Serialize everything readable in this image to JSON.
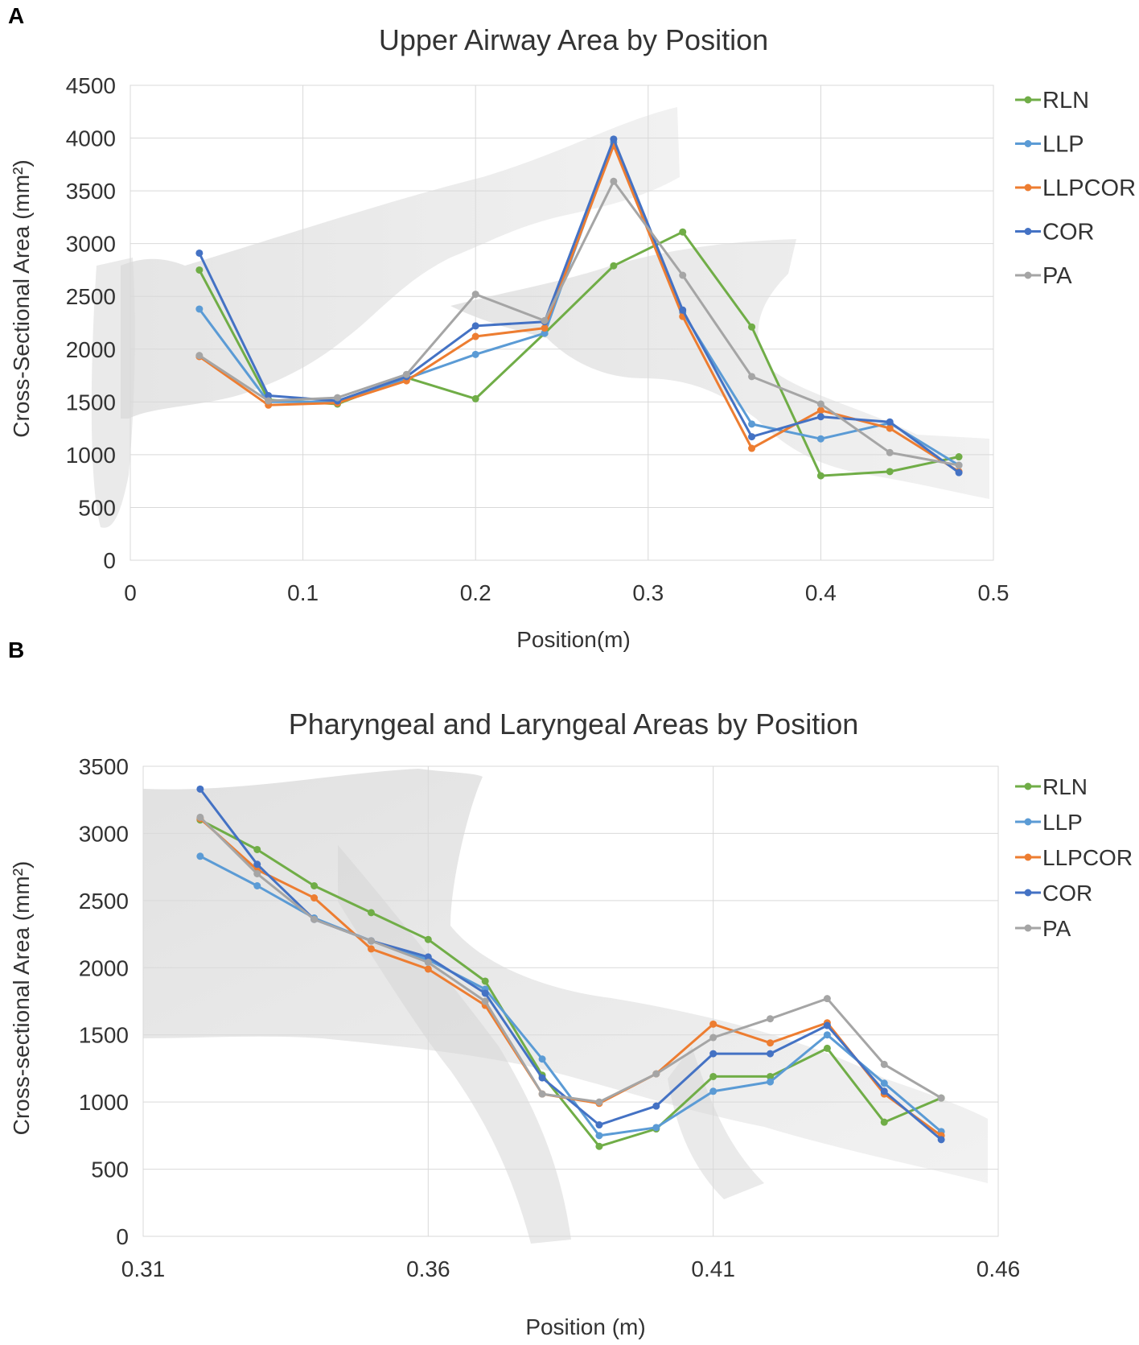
{
  "panels": {
    "a": {
      "label": "A"
    },
    "b": {
      "label": "B"
    }
  },
  "chart_data": [
    {
      "type": "line",
      "title": "Upper Airway Area by Position",
      "xlabel": "Position(m)",
      "ylabel": "Cross-Sectional Area (mm²)",
      "xlim": [
        0,
        0.5
      ],
      "ylim": [
        0,
        4500
      ],
      "xticks": [
        0,
        0.1,
        0.2,
        0.3,
        0.4,
        0.5
      ],
      "xtick_labels": [
        "0",
        "0.1",
        "0.2",
        "0.3",
        "0.4",
        "0.5"
      ],
      "yticks": [
        0,
        500,
        1000,
        1500,
        2000,
        2500,
        3000,
        3500,
        4000,
        4500
      ],
      "ytick_labels": [
        "0",
        "500",
        "1000",
        "1500",
        "2000",
        "2500",
        "3000",
        "3500",
        "4000",
        "4500"
      ],
      "grid": true,
      "legend_position": "right",
      "x": [
        0.04,
        0.08,
        0.12,
        0.16,
        0.2,
        0.24,
        0.28,
        0.32,
        0.36,
        0.4,
        0.44,
        0.48
      ],
      "series": [
        {
          "name": "RLN",
          "color": "#70ad47",
          "values": [
            2750,
            1520,
            1480,
            1730,
            1530,
            2150,
            2790,
            3110,
            2210,
            800,
            840,
            980
          ]
        },
        {
          "name": "LLP",
          "color": "#5b9bd5",
          "values": [
            2380,
            1500,
            1500,
            1720,
            1950,
            2150,
            3960,
            2350,
            1290,
            1150,
            1300,
            900
          ]
        },
        {
          "name": "LLPCOR",
          "color": "#ed7d31",
          "values": [
            1930,
            1470,
            1490,
            1700,
            2120,
            2200,
            3930,
            2310,
            1060,
            1420,
            1250,
            840
          ]
        },
        {
          "name": "COR",
          "color": "#4472c4",
          "values": [
            2910,
            1560,
            1510,
            1740,
            2220,
            2260,
            3990,
            2370,
            1170,
            1360,
            1310,
            830
          ]
        },
        {
          "name": "PA",
          "color": "#a5a5a5",
          "values": [
            1940,
            1510,
            1540,
            1760,
            2520,
            2270,
            3590,
            2700,
            1740,
            1480,
            1020,
            900
          ]
        }
      ]
    },
    {
      "type": "line",
      "title": "Pharyngeal and Laryngeal Areas by Position",
      "xlabel": "Position (m)",
      "ylabel": "Cross-sectional Area (mm²)",
      "xlim": [
        0.31,
        0.46
      ],
      "ylim": [
        0,
        3500
      ],
      "xticks": [
        0.31,
        0.36,
        0.41,
        0.46
      ],
      "xtick_labels": [
        "0.31",
        "0.36",
        "0.41",
        "0.46"
      ],
      "yticks": [
        0,
        500,
        1000,
        1500,
        2000,
        2500,
        3000,
        3500
      ],
      "ytick_labels": [
        "0",
        "500",
        "1000",
        "1500",
        "2000",
        "2500",
        "3000",
        "3500"
      ],
      "grid": true,
      "legend_position": "right",
      "x": [
        0.32,
        0.33,
        0.34,
        0.35,
        0.36,
        0.37,
        0.38,
        0.39,
        0.4,
        0.41,
        0.42,
        0.43,
        0.44,
        0.45
      ],
      "series": [
        {
          "name": "RLN",
          "color": "#70ad47",
          "values": [
            3100,
            2880,
            2610,
            2410,
            2210,
            1900,
            1200,
            670,
            800,
            1190,
            1190,
            1400,
            850,
            1030
          ]
        },
        {
          "name": "LLP",
          "color": "#5b9bd5",
          "values": [
            2830,
            2610,
            2370,
            2200,
            2060,
            1840,
            1320,
            750,
            810,
            1080,
            1150,
            1500,
            1140,
            780
          ]
        },
        {
          "name": "LLPCOR",
          "color": "#ed7d31",
          "values": [
            3110,
            2730,
            2520,
            2140,
            1990,
            1720,
            1060,
            990,
            1210,
            1580,
            1440,
            1590,
            1060,
            750
          ]
        },
        {
          "name": "COR",
          "color": "#4472c4",
          "values": [
            3330,
            2770,
            2360,
            2200,
            2080,
            1810,
            1180,
            830,
            970,
            1360,
            1360,
            1570,
            1080,
            720
          ]
        },
        {
          "name": "PA",
          "color": "#a5a5a5",
          "values": [
            3120,
            2700,
            2360,
            2200,
            2040,
            1750,
            1060,
            1000,
            1210,
            1480,
            1620,
            1770,
            1280,
            1030
          ]
        }
      ]
    }
  ]
}
